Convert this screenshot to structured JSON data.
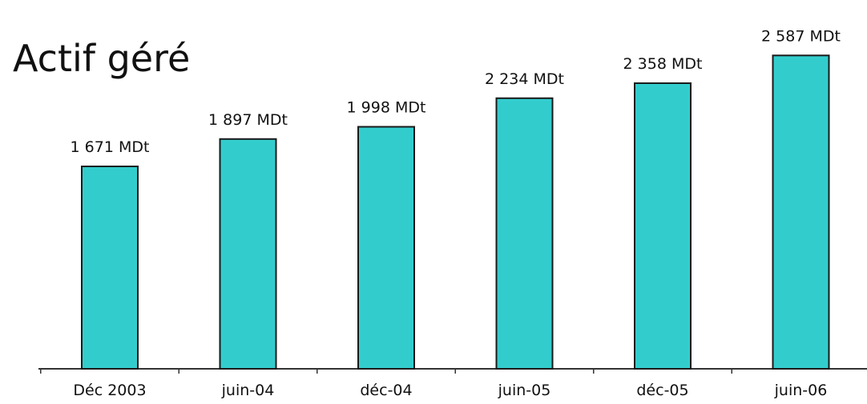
{
  "chart_data": {
    "type": "bar",
    "title": "Actif géré",
    "categories": [
      "Déc 2003",
      "juin-04",
      "déc-04",
      "juin-05",
      "déc-05",
      "juin-06"
    ],
    "values": [
      1671,
      1897,
      1998,
      2234,
      2358,
      2587
    ],
    "data_labels": [
      "1 671 MDt",
      "1 897 MDt",
      "1 998 MDt",
      "2 234 MDt",
      "2 358 MDt",
      "2 587 MDt"
    ],
    "xlabel": "",
    "ylabel": "",
    "ylim": [
      0,
      2800
    ],
    "bar_color": "#33CCCC",
    "bar_edge_color": "#1a1a1a",
    "grid": false,
    "legend": "none",
    "y_axis_visible": false
  }
}
